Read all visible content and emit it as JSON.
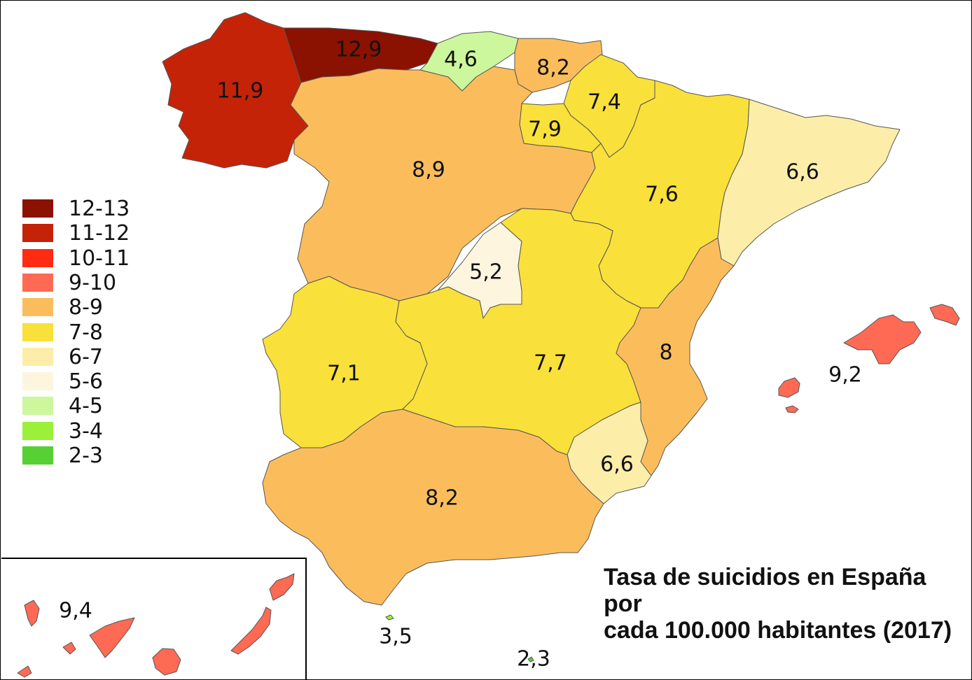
{
  "title_line1": "Tasa de suicidios en España por",
  "title_line2": "cada 100.000 habitantes (2017)",
  "legend": [
    {
      "label": "12-13",
      "color": "#8B1100"
    },
    {
      "label": "11-12",
      "color": "#C42308"
    },
    {
      "label": "10-11",
      "color": "#FF2B12"
    },
    {
      "label": "9-10",
      "color": "#FF6A55"
    },
    {
      "label": "8-9",
      "color": "#FBBD5C"
    },
    {
      "label": "7-8",
      "color": "#FAE03A"
    },
    {
      "label": "6-7",
      "color": "#FCEEA9"
    },
    {
      "label": "5-6",
      "color": "#FDF5DE"
    },
    {
      "label": "4-5",
      "color": "#CCF79C"
    },
    {
      "label": "3-4",
      "color": "#9BF03A"
    },
    {
      "label": "2-3",
      "color": "#57D033"
    }
  ],
  "regions": [
    {
      "name": "galicia",
      "value": "11,9",
      "color": "#C42308"
    },
    {
      "name": "asturias",
      "value": "12,9",
      "color": "#8B1100"
    },
    {
      "name": "cantabria",
      "value": "4,6",
      "color": "#CCF79C"
    },
    {
      "name": "pais-vasco",
      "value": "8,2",
      "color": "#FBBD5C"
    },
    {
      "name": "navarra",
      "value": "7,4",
      "color": "#FAE03A"
    },
    {
      "name": "la-rioja",
      "value": "7,9",
      "color": "#FAE03A"
    },
    {
      "name": "castilla-y-leon",
      "value": "8,9",
      "color": "#FBBD5C"
    },
    {
      "name": "aragon",
      "value": "7,6",
      "color": "#FAE03A"
    },
    {
      "name": "cataluna",
      "value": "6,6",
      "color": "#FCEEA9"
    },
    {
      "name": "madrid",
      "value": "5,2",
      "color": "#FDF5DE"
    },
    {
      "name": "extremadura",
      "value": "7,1",
      "color": "#FAE03A"
    },
    {
      "name": "castilla-la-mancha",
      "value": "7,7",
      "color": "#FAE03A"
    },
    {
      "name": "comunidad-valenciana",
      "value": "8",
      "color": "#FBBD5C"
    },
    {
      "name": "murcia",
      "value": "6,6",
      "color": "#FCEEA9"
    },
    {
      "name": "andalucia",
      "value": "8,2",
      "color": "#FBBD5C"
    },
    {
      "name": "baleares",
      "value": "9,2",
      "color": "#FF6A55"
    },
    {
      "name": "ceuta",
      "value": "3,5",
      "color": "#9BF03A"
    },
    {
      "name": "melilla",
      "value": "2,3",
      "color": "#57D033"
    },
    {
      "name": "canarias",
      "value": "9,4",
      "color": "#FF6A55"
    }
  ]
}
